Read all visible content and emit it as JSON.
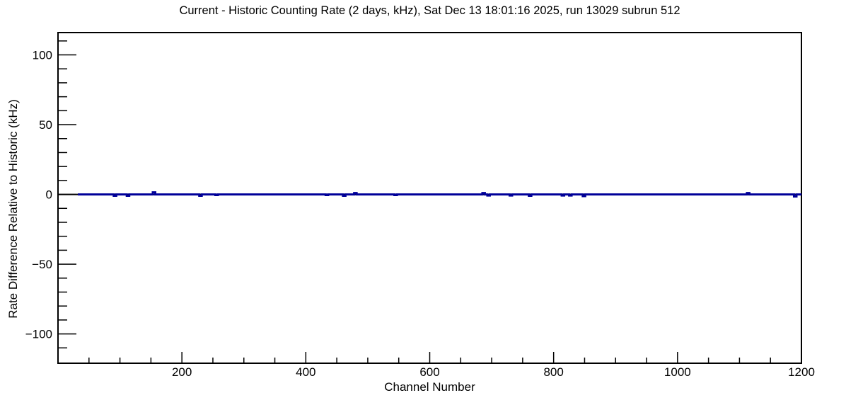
{
  "meta": {
    "timestamp": "Sat Dec 13 18:01:16 2025",
    "run": "13029",
    "subrun": "512"
  },
  "chart_data": {
    "type": "line",
    "title": "Current - Historic Counting Rate (2 days, kHz), Sat Dec 13 18:01:16 2025, run 13029 subrun 512",
    "xlabel": "Channel Number",
    "ylabel": "Rate Difference Relative to Historic (kHz)",
    "xlim": [
      0,
      1200
    ],
    "ylim": [
      -121,
      116
    ],
    "x_major_ticks": [
      200,
      400,
      600,
      800,
      1000,
      1200
    ],
    "x_minor_step": 50,
    "y_major_ticks": [
      100,
      50,
      0,
      -50,
      -100
    ],
    "y_minor_step": 10,
    "grid": false,
    "legend_position": "none",
    "colors": {
      "line": "#000099",
      "zero_line": "#000000",
      "frame": "#000000",
      "background": "#ffffff"
    },
    "series": [
      {
        "name": "current-minus-historic-rate",
        "baseline_value": 0,
        "line_start_channel": 32,
        "line_end_channel": 1200,
        "anomalies": [
          {
            "channel": 92,
            "value": -1.0
          },
          {
            "channel": 113,
            "value": -1.0
          },
          {
            "channel": 155,
            "value": 1.5
          },
          {
            "channel": 230,
            "value": -1.0
          },
          {
            "channel": 256,
            "value": -0.5
          },
          {
            "channel": 434,
            "value": -0.5
          },
          {
            "channel": 462,
            "value": -1.0
          },
          {
            "channel": 480,
            "value": 1.0
          },
          {
            "channel": 545,
            "value": -0.5
          },
          {
            "channel": 687,
            "value": 1.0
          },
          {
            "channel": 695,
            "value": -0.8
          },
          {
            "channel": 731,
            "value": -0.8
          },
          {
            "channel": 762,
            "value": -1.0
          },
          {
            "channel": 815,
            "value": -0.8
          },
          {
            "channel": 827,
            "value": -0.8
          },
          {
            "channel": 849,
            "value": -1.2
          },
          {
            "channel": 1114,
            "value": 1.0
          },
          {
            "channel": 1190,
            "value": -1.5
          }
        ]
      }
    ]
  }
}
